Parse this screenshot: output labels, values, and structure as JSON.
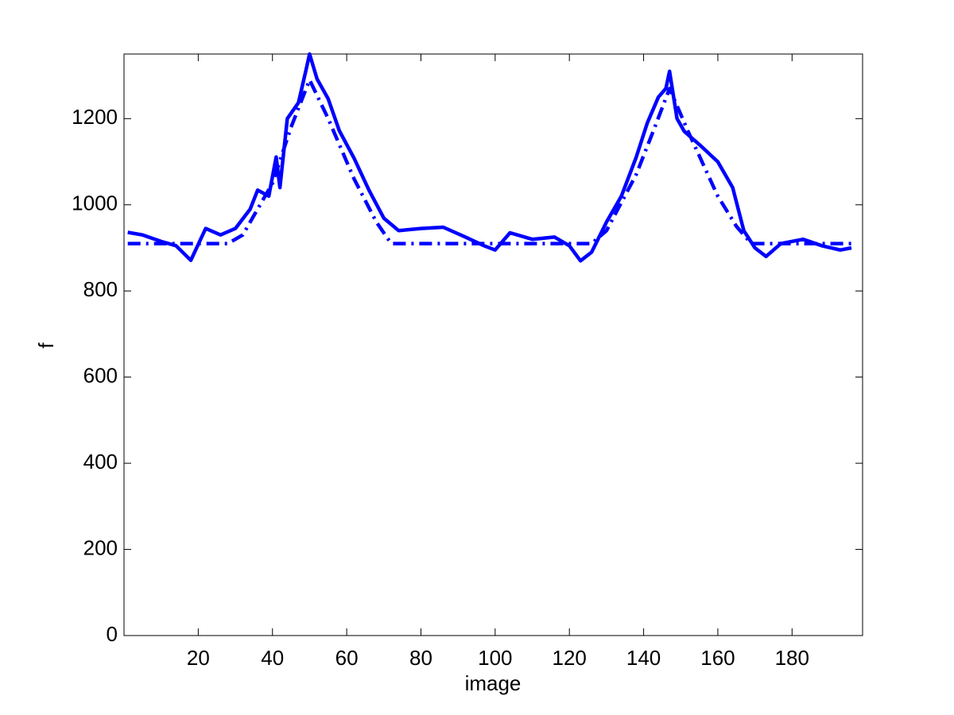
{
  "chart_data": {
    "type": "line",
    "xlabel": "image",
    "ylabel": "f",
    "xlim": [
      0,
      199
    ],
    "ylim": [
      0,
      1350
    ],
    "xticks": [
      20,
      40,
      60,
      80,
      100,
      120,
      140,
      160,
      180
    ],
    "yticks": [
      0,
      200,
      400,
      600,
      800,
      1000,
      1200
    ],
    "grid": false,
    "series": [
      {
        "style": "solid",
        "color": "#0000ff",
        "x": [
          1,
          5,
          10,
          14,
          18,
          22,
          26,
          30,
          34,
          36,
          39,
          41,
          42,
          44,
          47,
          49,
          50,
          52,
          55,
          58,
          62,
          66,
          70,
          74,
          80,
          86,
          92,
          97,
          100,
          104,
          110,
          116,
          120,
          123,
          126,
          130,
          134,
          138,
          141,
          144,
          146,
          147,
          149,
          151,
          155,
          160,
          164,
          167,
          170,
          173,
          177,
          183,
          188,
          193,
          196
        ],
        "values": [
          936,
          930,
          915,
          905,
          871,
          945,
          930,
          945,
          990,
          1034,
          1020,
          1111,
          1040,
          1200,
          1237,
          1311,
          1350,
          1292,
          1246,
          1172,
          1108,
          1034,
          969,
          940,
          945,
          948,
          925,
          905,
          895,
          935,
          920,
          925,
          905,
          870,
          890,
          960,
          1020,
          1110,
          1190,
          1250,
          1270,
          1310,
          1200,
          1170,
          1140,
          1100,
          1040,
          940,
          900,
          880,
          910,
          920,
          905,
          895,
          900
        ]
      },
      {
        "style": "dashdot",
        "color": "#0000ff",
        "x": [
          1,
          28,
          32,
          40,
          45,
          50,
          55,
          62,
          68,
          72,
          126,
          130,
          138,
          143,
          147,
          152,
          160,
          165,
          169,
          196
        ],
        "values": [
          910,
          910,
          930,
          1050,
          1180,
          1290,
          1200,
          1060,
          960,
          910,
          910,
          940,
          1070,
          1180,
          1270,
          1170,
          1020,
          950,
          910,
          910
        ]
      }
    ]
  }
}
